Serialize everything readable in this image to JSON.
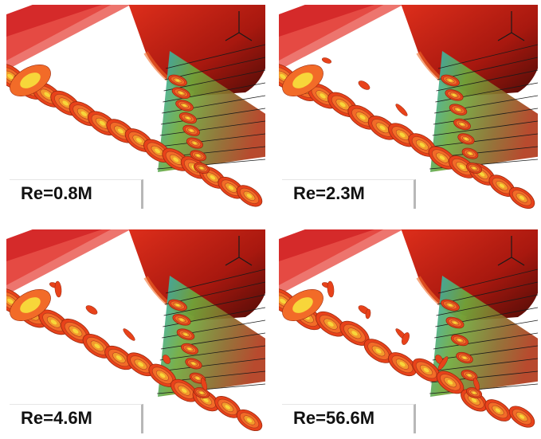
{
  "panels": [
    {
      "label": "Re=0.8M"
    },
    {
      "label": "Re=2.3M"
    },
    {
      "label": "Re=4.6M"
    },
    {
      "label": "Re=56.6M"
    }
  ],
  "colors": {
    "background": "#ffffff",
    "vortex_outer": "#e8421a",
    "vortex_mid": "#f26b28",
    "vortex_inner": "#f39a2c",
    "vortex_core": "#f7d63a",
    "fuselage": "#c8231a",
    "fin_green": "#6ea93a",
    "fin_cyan": "#2bb5c9"
  },
  "icons": [
    "axis-triad-icon"
  ]
}
